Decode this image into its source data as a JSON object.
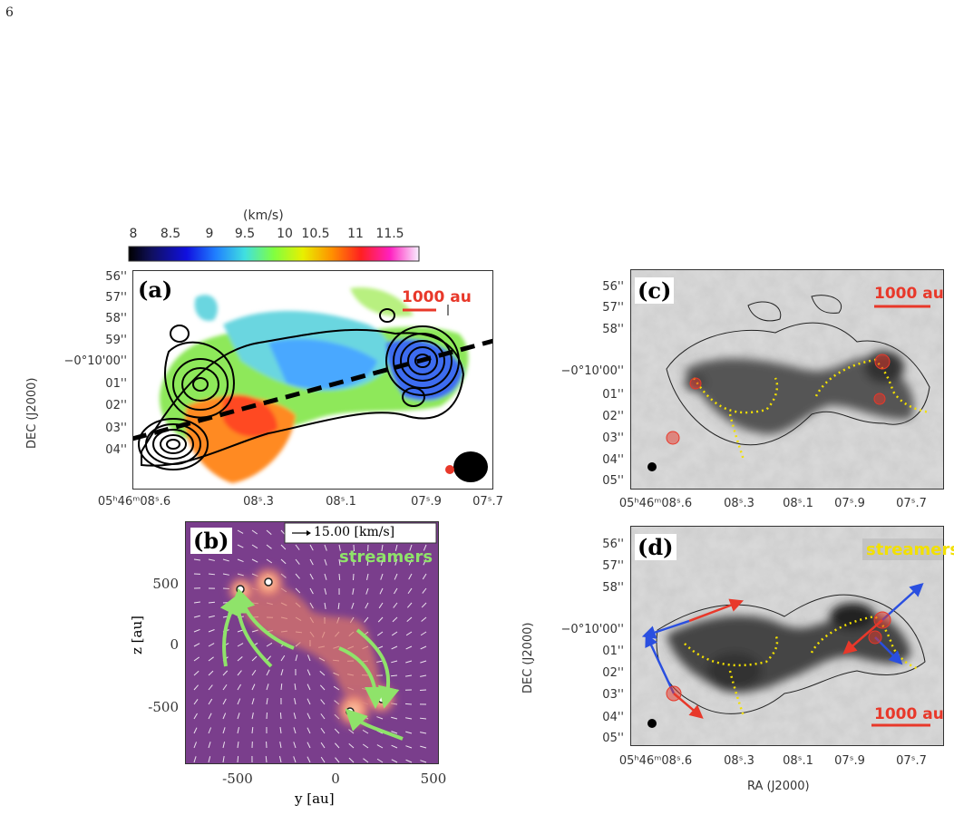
{
  "page_number": "6",
  "colorbar": {
    "unit": "(km/s)",
    "ticks": [
      "8",
      "8.5",
      "9",
      "9.5",
      "10",
      "10.5",
      "11",
      "11.5"
    ]
  },
  "panel_a": {
    "label": "(a)",
    "scale_bar": "1000 au",
    "ylabel": "DEC (J2000)",
    "yticks": [
      "56''",
      "57''",
      "58''",
      "59''",
      "−0°10'00''",
      "01''",
      "02''",
      "03''",
      "04''"
    ],
    "xticks": [
      "05ʰ46ᵐ08ˢ.6",
      "08ˢ.3",
      "08ˢ.1",
      "07ˢ.9",
      "07ˢ.7"
    ]
  },
  "panel_b": {
    "label": "(b)",
    "vector_key": "15.00 [km/s]",
    "streamers": "streamers",
    "ylabel": "z [au]",
    "xlabel": "y [au]",
    "yticks": [
      "500",
      "0",
      "-500"
    ],
    "xticks": [
      "-500",
      "0",
      "500"
    ]
  },
  "panel_c": {
    "label": "(c)",
    "scale_bar": "1000 au",
    "yticks": [
      "56''",
      "57''",
      "58''",
      "−0°10'00''",
      "01''",
      "02''",
      "03''",
      "04''",
      "05''"
    ],
    "xticks": [
      "05ʰ46ᵐ08ˢ.6",
      "08ˢ.3",
      "08ˢ.1",
      "07ˢ.9",
      "07ˢ.7"
    ]
  },
  "panel_d": {
    "label": "(d)",
    "streamers": "streamers",
    "scale_bar": "1000 au",
    "ylabel": "DEC (J2000)",
    "xlabel": "RA (J2000)",
    "yticks": [
      "56''",
      "57''",
      "58''",
      "−0°10'00''",
      "01''",
      "02''",
      "03''",
      "04''",
      "05''"
    ],
    "xticks": [
      "05ʰ46ᵐ08ˢ.6",
      "08ˢ.3",
      "08ˢ.1",
      "07ˢ.9",
      "07ˢ.7"
    ]
  },
  "colors": {
    "accent_red": "#e8382a",
    "streamer_green": "#8fe36a",
    "streamer_yellow": "#f2e000",
    "arrow_blue": "#2a4fe0"
  }
}
